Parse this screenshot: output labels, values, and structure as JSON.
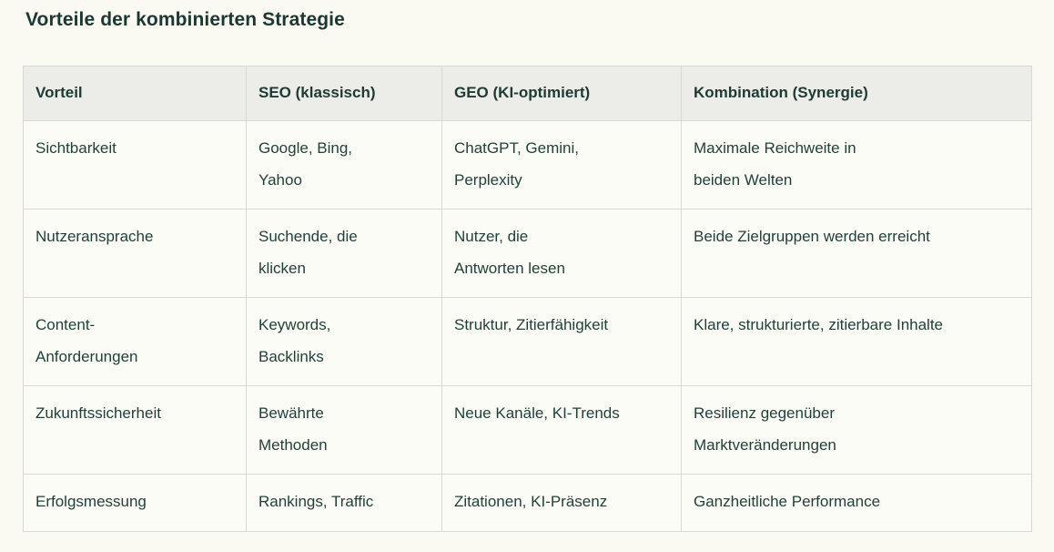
{
  "title": "Vorteile der kombinierten Strategie",
  "colors": {
    "page_background": "#faf9f2",
    "cell_background": "#fcfcf7",
    "header_background": "#ecede8",
    "border": "#d9d9d1",
    "text": "#1e3a34"
  },
  "table": {
    "headers": [
      "Vorteil",
      "SEO (klassisch)",
      "GEO (KI-optimiert)",
      "Kombination (Synergie)"
    ],
    "rows": [
      [
        "Sichtbarkeit",
        "Google, Bing,\nYahoo",
        "ChatGPT, Gemini,\nPerplexity",
        "Maximale Reichweite in\nbeiden Welten"
      ],
      [
        "Nutzeransprache",
        "Suchende, die\nklicken",
        "Nutzer, die\nAntworten lesen",
        "Beide Zielgruppen werden erreicht"
      ],
      [
        "Content-\nAnforderungen",
        "Keywords,\nBacklinks",
        "Struktur, Zitierfähigkeit",
        "Klare, strukturierte, zitierbare Inhalte"
      ],
      [
        "Zukunftssicherheit",
        "Bewährte\nMethoden",
        "Neue Kanäle, KI-Trends",
        "Resilienz gegenüber\nMarktveränderungen"
      ],
      [
        "Erfolgsmessung",
        "Rankings, Traffic",
        "Zitationen, KI-Präsenz",
        "Ganzheitliche Performance"
      ]
    ]
  }
}
